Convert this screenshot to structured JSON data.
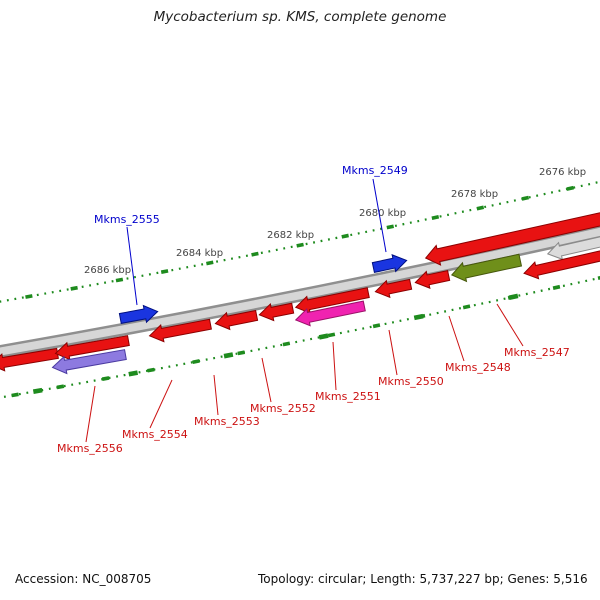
{
  "title": "Mycobacterium sp. KMS, complete genome",
  "footer": {
    "accession": "Accession: NC_008705",
    "details": "Topology: circular; Length: 5,737,227 bp; Genes: 5,516"
  },
  "scale": {
    "labels": [
      "2686 kbp",
      "2684 kbp",
      "2682 kbp",
      "2680 kbp",
      "2678 kbp",
      "2676 kbp"
    ]
  },
  "genes": [
    {
      "name": "Mkms_2555",
      "glyph": "blue",
      "label": "blue",
      "strand": "forward"
    },
    {
      "name": "Mkms_2549",
      "glyph": "blue",
      "label": "blue",
      "strand": "forward"
    },
    {
      "name": "Mkms_2556",
      "glyph": "purple",
      "label": "red",
      "strand": "reverse"
    },
    {
      "name": "Mkms_2554",
      "glyph": "red",
      "label": "red",
      "strand": "reverse"
    },
    {
      "name": "Mkms_2553",
      "glyph": "red",
      "label": "red",
      "strand": "reverse"
    },
    {
      "name": "Mkms_2552",
      "glyph": "red",
      "label": "red",
      "strand": "reverse"
    },
    {
      "name": "Mkms_2551",
      "glyph": "pink",
      "label": "red",
      "strand": "reverse"
    },
    {
      "name": "Mkms_2550",
      "glyph": "red",
      "label": "red",
      "strand": "reverse"
    },
    {
      "name": "Mkms_2548",
      "glyph": "red",
      "label": "red",
      "strand": "reverse"
    },
    {
      "name": "Mkms_2547",
      "glyph": "olive",
      "label": "red",
      "strand": "reverse"
    }
  ],
  "colors": {
    "label_blue": "#0000cc",
    "label_red": "#cc1111",
    "scale_text": "#444444",
    "tick_green": "#1e8b1e",
    "track_edge": "#8f8f8f",
    "track_fill": "#d6d6d6",
    "gene_red": {
      "fill": "#e81212",
      "edge": "#8b0000"
    },
    "gene_blue": {
      "fill": "#1a35e0",
      "edge": "#001080"
    },
    "gene_purple": {
      "fill": "#8d7ae0",
      "edge": "#4a3aa0"
    },
    "gene_pink": {
      "fill": "#f023b0",
      "edge": "#9a1268"
    },
    "gene_olive": {
      "fill": "#6f8f1a",
      "edge": "#46570c"
    },
    "gene_gray": {
      "fill": "#dcdcdc",
      "edge": "#8a8a8a"
    }
  }
}
